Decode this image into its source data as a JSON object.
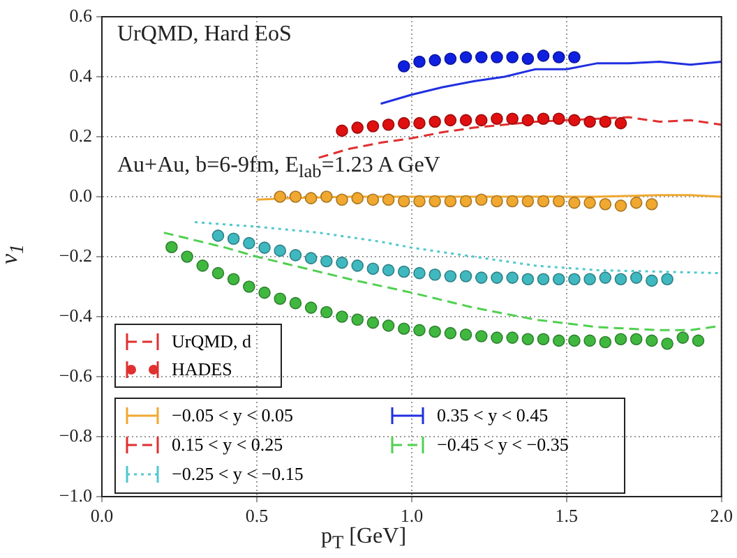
{
  "chart_data": {
    "type": "scatter",
    "xlabel": "p$_{T}$ [GeV]",
    "ylabel": "v$_{1}$",
    "xlim": [
      0,
      2
    ],
    "xticks": [
      {
        "value": 0,
        "label": "0.0"
      },
      0.5,
      {
        "value": 1,
        "label": "1.0"
      },
      1.5,
      {
        "value": 2,
        "label": "2.0"
      }
    ],
    "ylim": [
      -1,
      0.6
    ],
    "yticks": [
      {
        "value": -1,
        "label": "−1.0"
      },
      {
        "value": -0.8,
        "label": "−0.8"
      },
      {
        "value": -0.6,
        "label": "−0.6"
      },
      {
        "value": -0.4,
        "label": "−0.4"
      },
      {
        "value": -0.2,
        "label": "−0.2"
      },
      {
        "value": 0,
        "label": "0.0"
      },
      0.2,
      0.4,
      0.6
    ],
    "grid": true,
    "legend": "bottom left",
    "annotations": [
      "UrQMD, Hard EoS",
      "Au+Au, b=6-9fm, E$_{lab}$=1.23 A GeV",
      "UrQMD, d",
      "HADES"
    ],
    "series": [
      {
        "name": "−0.05 < y < 0.05",
        "type": "line",
        "color": "#f0a830",
        "line_style": "solid",
        "marker": "none",
        "x": [
          0.5,
          0.6,
          0.8,
          1.0,
          1.2,
          1.4,
          1.6,
          1.8,
          1.9,
          2.0
        ],
        "values": [
          -0.01,
          -0.005,
          0,
          0,
          0,
          0,
          0,
          0.005,
          0.005,
          0
        ]
      },
      {
        "name": "0.15 < y < 0.25",
        "type": "line",
        "color": "#e03030",
        "line_style": "dashed",
        "marker": "none",
        "x": [
          0.7,
          0.8,
          0.9,
          1.0,
          1.1,
          1.2,
          1.3,
          1.4,
          1.5,
          1.6,
          1.7,
          1.8,
          1.9,
          2.0
        ],
        "values": [
          0.13,
          0.16,
          0.18,
          0.195,
          0.215,
          0.23,
          0.24,
          0.25,
          0.255,
          0.26,
          0.265,
          0.25,
          0.255,
          0.24
        ]
      },
      {
        "name": "−0.25 < y < −0.15",
        "type": "line",
        "color": "#50c8d0",
        "line_style": "dotted",
        "marker": "none",
        "x": [
          0.3,
          0.5,
          0.7,
          0.9,
          1.0,
          1.2,
          1.4,
          1.6,
          1.8,
          2.0
        ],
        "values": [
          -0.085,
          -0.1,
          -0.12,
          -0.15,
          -0.17,
          -0.2,
          -0.23,
          -0.245,
          -0.25,
          -0.255
        ]
      },
      {
        "name": "0.35 < y < 0.45",
        "type": "line",
        "color": "#2030e0",
        "line_style": "solid",
        "marker": "none",
        "x": [
          0.9,
          1.0,
          1.1,
          1.2,
          1.3,
          1.4,
          1.5,
          1.6,
          1.7,
          1.8,
          1.9,
          2.0
        ],
        "values": [
          0.31,
          0.34,
          0.365,
          0.385,
          0.4,
          0.425,
          0.425,
          0.445,
          0.445,
          0.45,
          0.44,
          0.45
        ]
      },
      {
        "name": "−0.45 < y < −0.35",
        "type": "line",
        "color": "#50d050",
        "line_style": "dashed",
        "marker": "none",
        "x": [
          0.2,
          0.3,
          0.4,
          0.5,
          0.6,
          0.8,
          1.0,
          1.2,
          1.4,
          1.6,
          1.8,
          1.9,
          2.0
        ],
        "values": [
          -0.12,
          -0.145,
          -0.17,
          -0.2,
          -0.225,
          -0.275,
          -0.32,
          -0.37,
          -0.41,
          -0.435,
          -0.445,
          -0.445,
          -0.43
        ]
      },
      {
        "type": "scatter",
        "color": "#f0a830",
        "marker": "circle",
        "x": [
          0.575,
          0.625,
          0.675,
          0.725,
          0.775,
          0.825,
          0.875,
          0.925,
          0.975,
          1.025,
          1.075,
          1.125,
          1.175,
          1.225,
          1.275,
          1.325,
          1.375,
          1.425,
          1.475,
          1.525,
          1.575,
          1.625,
          1.675,
          1.725,
          1.775
        ],
        "values": [
          0,
          0,
          -0.005,
          0,
          -0.01,
          -0.005,
          -0.01,
          -0.01,
          -0.015,
          -0.015,
          -0.015,
          -0.015,
          -0.015,
          -0.01,
          -0.015,
          -0.015,
          -0.015,
          -0.015,
          -0.015,
          -0.02,
          -0.02,
          -0.025,
          -0.03,
          -0.02,
          -0.025
        ]
      },
      {
        "type": "scatter",
        "color": "#e01010",
        "marker": "circle",
        "x": [
          0.775,
          0.825,
          0.875,
          0.925,
          0.975,
          1.025,
          1.075,
          1.125,
          1.175,
          1.225,
          1.275,
          1.325,
          1.375,
          1.425,
          1.475,
          1.525,
          1.575,
          1.625,
          1.675
        ],
        "values": [
          0.22,
          0.23,
          0.235,
          0.24,
          0.245,
          0.245,
          0.25,
          0.255,
          0.255,
          0.255,
          0.26,
          0.26,
          0.255,
          0.26,
          0.26,
          0.255,
          0.25,
          0.25,
          0.245
        ]
      },
      {
        "type": "scatter",
        "color": "#40b8c0",
        "marker": "circle",
        "x": [
          0.375,
          0.425,
          0.475,
          0.525,
          0.575,
          0.625,
          0.675,
          0.725,
          0.775,
          0.825,
          0.875,
          0.925,
          0.975,
          1.025,
          1.075,
          1.125,
          1.175,
          1.225,
          1.275,
          1.325,
          1.375,
          1.425,
          1.475,
          1.525,
          1.575,
          1.625,
          1.675,
          1.725,
          1.775,
          1.825
        ],
        "values": [
          -0.13,
          -0.14,
          -0.155,
          -0.17,
          -0.18,
          -0.195,
          -0.205,
          -0.215,
          -0.22,
          -0.23,
          -0.24,
          -0.245,
          -0.25,
          -0.255,
          -0.26,
          -0.265,
          -0.265,
          -0.27,
          -0.27,
          -0.27,
          -0.275,
          -0.275,
          -0.275,
          -0.275,
          -0.275,
          -0.27,
          -0.275,
          -0.27,
          -0.28,
          -0.275
        ]
      },
      {
        "type": "scatter",
        "color": "#1020e0",
        "marker": "circle",
        "x": [
          0.975,
          1.025,
          1.075,
          1.125,
          1.175,
          1.225,
          1.275,
          1.325,
          1.375,
          1.425,
          1.475,
          1.525
        ],
        "values": [
          0.435,
          0.45,
          0.455,
          0.46,
          0.465,
          0.465,
          0.465,
          0.465,
          0.46,
          0.47,
          0.465,
          0.465
        ]
      },
      {
        "type": "scatter",
        "color": "#40b840",
        "marker": "circle",
        "x": [
          0.225,
          0.275,
          0.325,
          0.375,
          0.425,
          0.475,
          0.525,
          0.575,
          0.625,
          0.675,
          0.725,
          0.775,
          0.825,
          0.875,
          0.925,
          0.975,
          1.025,
          1.075,
          1.125,
          1.175,
          1.225,
          1.275,
          1.325,
          1.375,
          1.425,
          1.475,
          1.525,
          1.575,
          1.625,
          1.675,
          1.725,
          1.775,
          1.825,
          1.875,
          1.925
        ],
        "values": [
          -0.168,
          -0.2,
          -0.23,
          -0.255,
          -0.275,
          -0.3,
          -0.32,
          -0.34,
          -0.355,
          -0.37,
          -0.385,
          -0.4,
          -0.41,
          -0.42,
          -0.43,
          -0.44,
          -0.445,
          -0.45,
          -0.455,
          -0.46,
          -0.465,
          -0.47,
          -0.47,
          -0.475,
          -0.475,
          -0.48,
          -0.48,
          -0.48,
          -0.485,
          -0.475,
          -0.475,
          -0.48,
          -0.49,
          -0.47,
          -0.48
        ]
      }
    ]
  }
}
